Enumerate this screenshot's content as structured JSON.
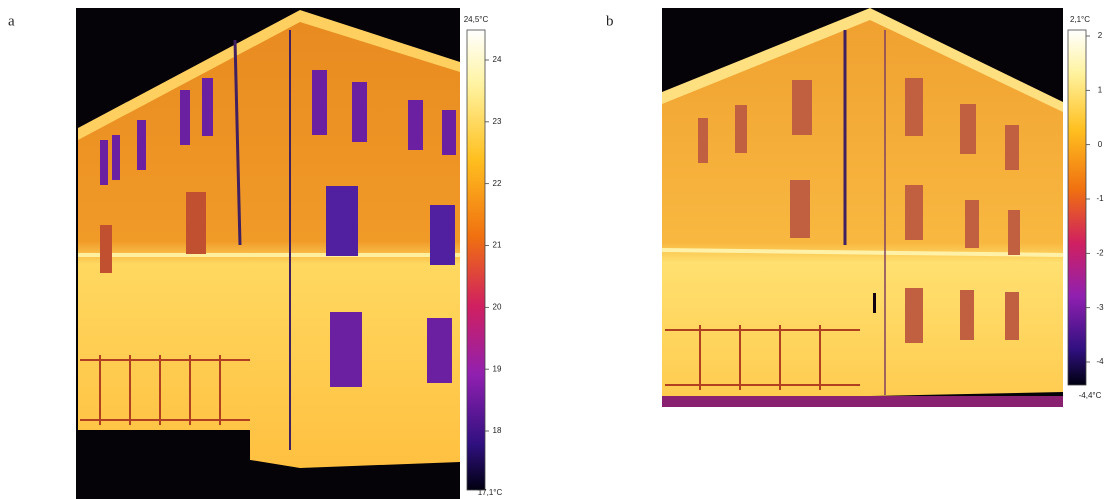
{
  "panels": [
    {
      "label": "a",
      "scale": {
        "max_label": "24,5°C",
        "min_label": "17,1°C",
        "ticks": [
          "24",
          "23",
          "22",
          "21",
          "20",
          "19",
          "18"
        ]
      }
    },
    {
      "label": "b",
      "scale": {
        "max_label": "2,1°C",
        "min_label": "-4,4°C",
        "ticks": [
          "2",
          "1",
          "0",
          "-1",
          "-2",
          "-3",
          "-4"
        ]
      }
    }
  ]
}
